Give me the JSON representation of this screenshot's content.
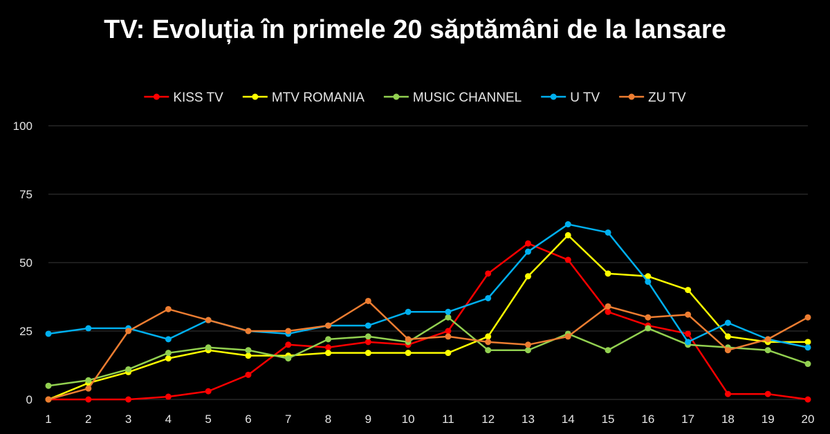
{
  "chart_data": {
    "type": "line",
    "title": "TV: Evoluția în primele 20 săptămâni de la lansare",
    "xlabel": "",
    "ylabel": "",
    "x": [
      1,
      2,
      3,
      4,
      5,
      6,
      7,
      8,
      9,
      10,
      11,
      12,
      13,
      14,
      15,
      16,
      17,
      18,
      19,
      20
    ],
    "x_tick_labels": [
      "1",
      "2",
      "3",
      "4",
      "5",
      "6",
      "7",
      "8",
      "9",
      "10",
      "11",
      "12",
      "13",
      "14",
      "15",
      "16",
      "17",
      "18",
      "19",
      "20"
    ],
    "ylim": [
      0,
      100
    ],
    "y_ticks": [
      0,
      25,
      50,
      75,
      100
    ],
    "y_tick_labels": [
      "0",
      "25",
      "50",
      "75",
      "100"
    ],
    "grid": true,
    "legend_position": "top",
    "series": [
      {
        "name": "KISS TV",
        "color": "#ff0000",
        "values": [
          0,
          0,
          0,
          1,
          3,
          9,
          20,
          19,
          21,
          20,
          25,
          46,
          57,
          51,
          32,
          27,
          24,
          2,
          2,
          0
        ]
      },
      {
        "name": "MTV ROMANIA",
        "color": "#ffff00",
        "values": [
          0,
          6,
          10,
          15,
          18,
          16,
          16,
          17,
          17,
          17,
          17,
          23,
          45,
          60,
          46,
          45,
          40,
          23,
          21,
          21
        ]
      },
      {
        "name": "MUSIC CHANNEL",
        "color": "#92d050",
        "values": [
          5,
          7,
          11,
          17,
          19,
          18,
          15,
          22,
          23,
          21,
          30,
          18,
          18,
          24,
          18,
          26,
          20,
          19,
          18,
          13
        ]
      },
      {
        "name": "U TV",
        "color": "#00b0f0",
        "values": [
          24,
          26,
          26,
          22,
          29,
          25,
          24,
          27,
          27,
          32,
          32,
          37,
          54,
          64,
          61,
          43,
          21,
          28,
          22,
          19
        ]
      },
      {
        "name": "ZU TV",
        "color": "#ed7d31",
        "values": [
          0,
          4,
          25,
          33,
          29,
          25,
          25,
          27,
          36,
          22,
          23,
          21,
          20,
          23,
          34,
          30,
          31,
          18,
          22,
          30
        ]
      }
    ]
  }
}
